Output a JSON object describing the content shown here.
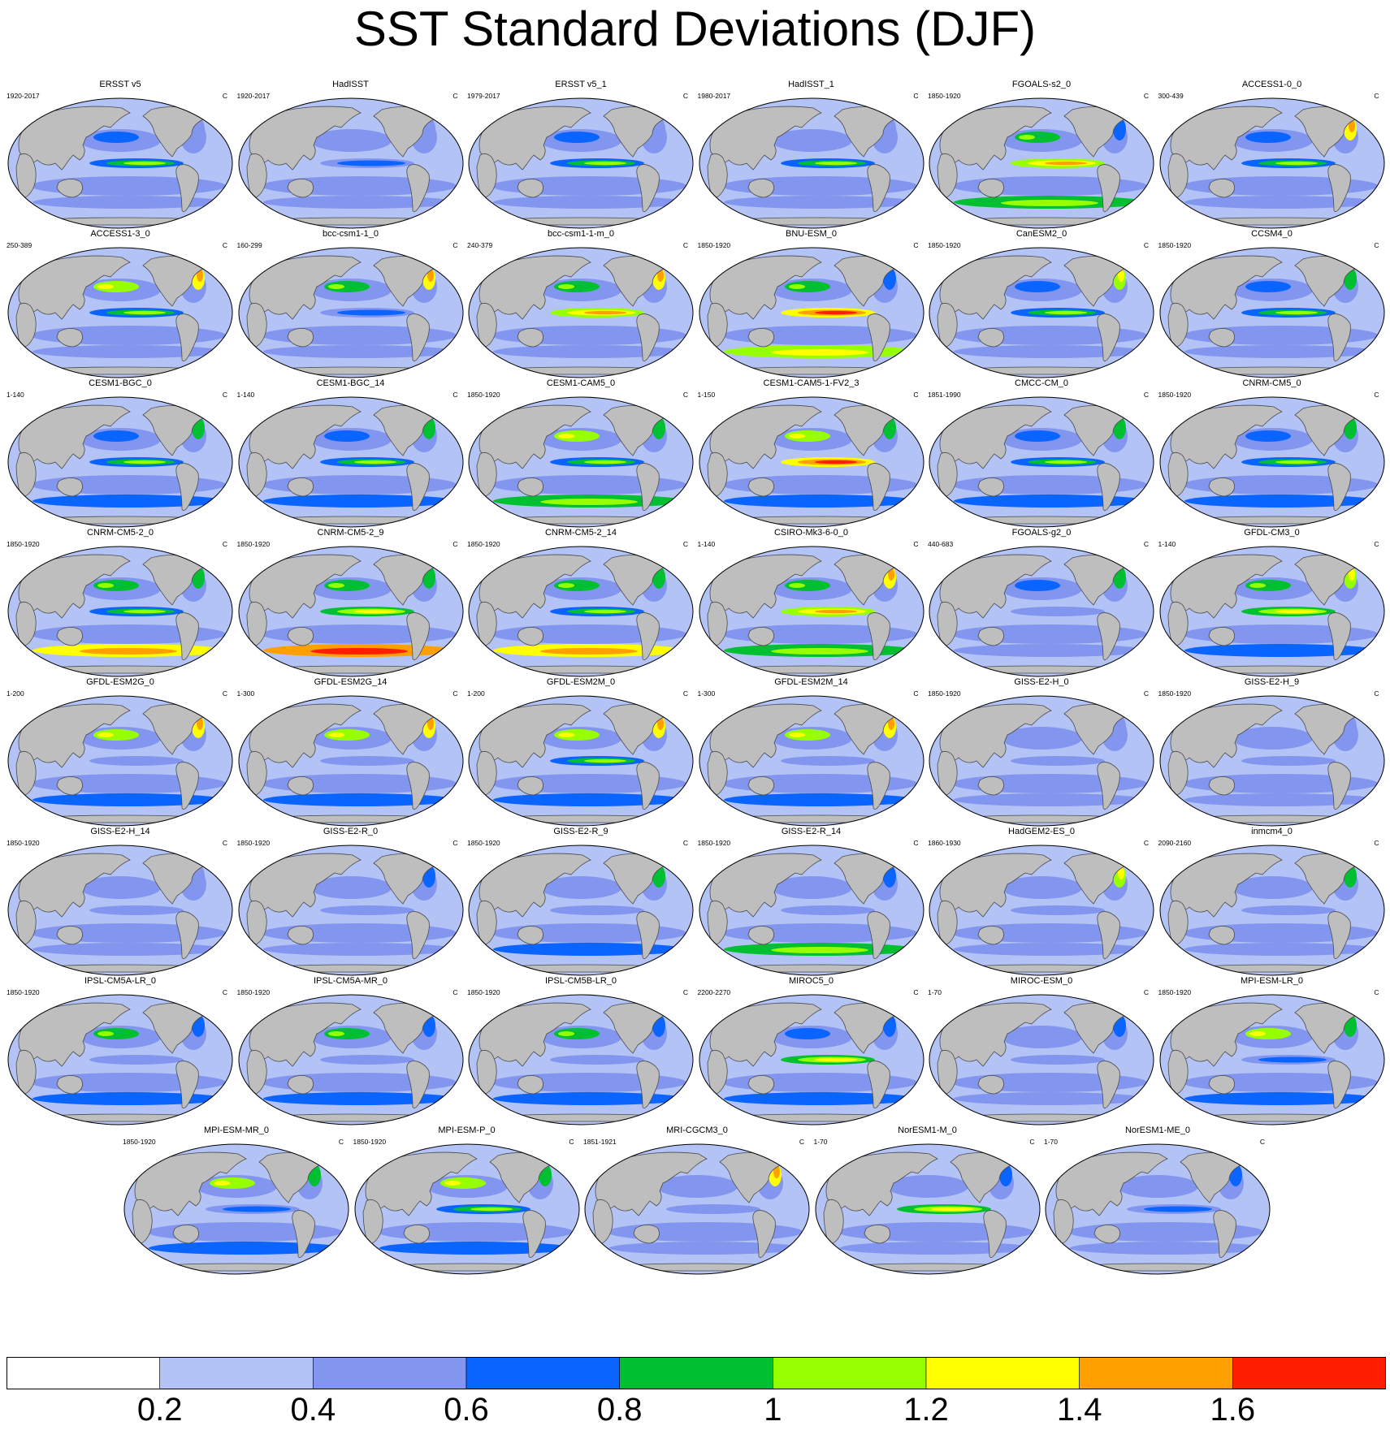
{
  "title": "SST Standard Deviations (DJF)",
  "colorbar": {
    "colors": [
      "#ffffff",
      "#b4c3f5",
      "#8296f0",
      "#0a64ff",
      "#00c032",
      "#96ff00",
      "#ffff00",
      "#ffa000",
      "#ff1e00"
    ],
    "tick_labels": [
      "0.2",
      "0.4",
      "0.6",
      "0.8",
      "1",
      "1.2",
      "1.4",
      "1.6"
    ]
  },
  "map_colors": {
    "land": "#bebebe",
    "coast": "#4a4a4a",
    "base_ocean": "#b4c3f5"
  },
  "panels": [
    {
      "name": "ERSST v5",
      "years": "1920-2017",
      "unit": "C"
    },
    {
      "name": "HadISST",
      "years": "1920-2017",
      "unit": "C"
    },
    {
      "name": "ERSST v5_1",
      "years": "1979-2017",
      "unit": "C"
    },
    {
      "name": "HadISST_1",
      "years": "1980-2017",
      "unit": "C"
    },
    {
      "name": "FGOALS-s2_0",
      "years": "1850-1920",
      "unit": "C"
    },
    {
      "name": "ACCESS1-0_0",
      "years": "300-439",
      "unit": "C"
    },
    {
      "name": "ACCESS1-3_0",
      "years": "250-389",
      "unit": "C"
    },
    {
      "name": "bcc-csm1-1_0",
      "years": "160-299",
      "unit": "C"
    },
    {
      "name": "bcc-csm1-1-m_0",
      "years": "240-379",
      "unit": "C"
    },
    {
      "name": "BNU-ESM_0",
      "years": "1850-1920",
      "unit": "C"
    },
    {
      "name": "CanESM2_0",
      "years": "1850-1920",
      "unit": "C"
    },
    {
      "name": "CCSM4_0",
      "years": "1850-1920",
      "unit": "C"
    },
    {
      "name": "CESM1-BGC_0",
      "years": "1-140",
      "unit": "C"
    },
    {
      "name": "CESM1-BGC_14",
      "years": "1-140",
      "unit": "C"
    },
    {
      "name": "CESM1-CAM5_0",
      "years": "1850-1920",
      "unit": "C"
    },
    {
      "name": "CESM1-CAM5-1-FV2_3",
      "years": "1-150",
      "unit": "C"
    },
    {
      "name": "CMCC-CM_0",
      "years": "1851-1990",
      "unit": "C"
    },
    {
      "name": "CNRM-CM5_0",
      "years": "1850-1920",
      "unit": "C"
    },
    {
      "name": "CNRM-CM5-2_0",
      "years": "1850-1920",
      "unit": "C"
    },
    {
      "name": "CNRM-CM5-2_9",
      "years": "1850-1920",
      "unit": "C"
    },
    {
      "name": "CNRM-CM5-2_14",
      "years": "1850-1920",
      "unit": "C"
    },
    {
      "name": "CSIRO-Mk3-6-0_0",
      "years": "1-140",
      "unit": "C"
    },
    {
      "name": "FGOALS-g2_0",
      "years": "440-683",
      "unit": "C"
    },
    {
      "name": "GFDL-CM3_0",
      "years": "1-140",
      "unit": "C"
    },
    {
      "name": "GFDL-ESM2G_0",
      "years": "1-200",
      "unit": "C"
    },
    {
      "name": "GFDL-ESM2G_14",
      "years": "1-300",
      "unit": "C"
    },
    {
      "name": "GFDL-ESM2M_0",
      "years": "1-200",
      "unit": "C"
    },
    {
      "name": "GFDL-ESM2M_14",
      "years": "1-300",
      "unit": "C"
    },
    {
      "name": "GISS-E2-H_0",
      "years": "1850-1920",
      "unit": "C"
    },
    {
      "name": "GISS-E2-H_9",
      "years": "1850-1920",
      "unit": "C"
    },
    {
      "name": "GISS-E2-H_14",
      "years": "1850-1920",
      "unit": "C"
    },
    {
      "name": "GISS-E2-R_0",
      "years": "1850-1920",
      "unit": "C"
    },
    {
      "name": "GISS-E2-R_9",
      "years": "1850-1920",
      "unit": "C"
    },
    {
      "name": "GISS-E2-R_14",
      "years": "1850-1920",
      "unit": "C"
    },
    {
      "name": "HadGEM2-ES_0",
      "years": "1860-1930",
      "unit": "C"
    },
    {
      "name": "inmcm4_0",
      "years": "2090-2160",
      "unit": "C"
    },
    {
      "name": "IPSL-CM5A-LR_0",
      "years": "1850-1920",
      "unit": "C"
    },
    {
      "name": "IPSL-CM5A-MR_0",
      "years": "1850-1920",
      "unit": "C"
    },
    {
      "name": "IPSL-CM5B-LR_0",
      "years": "1850-1920",
      "unit": "C"
    },
    {
      "name": "MIROC5_0",
      "years": "2200-2270",
      "unit": "C"
    },
    {
      "name": "MIROC-ESM_0",
      "years": "1-70",
      "unit": "C"
    },
    {
      "name": "MPI-ESM-LR_0",
      "years": "1850-1920",
      "unit": "C"
    },
    {
      "name": "MPI-ESM-MR_0",
      "years": "1850-1920",
      "unit": "C"
    },
    {
      "name": "MPI-ESM-P_0",
      "years": "1850-1920",
      "unit": "C"
    },
    {
      "name": "MRI-CGCM3_0",
      "years": "1851-1921",
      "unit": "C"
    },
    {
      "name": "NorESM1-M_0",
      "years": "1-70",
      "unit": "C"
    },
    {
      "name": "NorESM1-ME_0",
      "years": "1-70",
      "unit": "C"
    }
  ]
}
